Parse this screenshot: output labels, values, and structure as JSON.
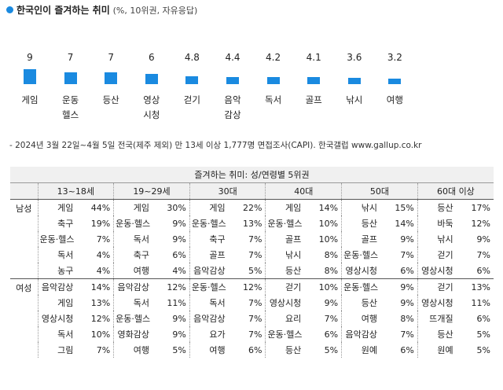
{
  "chart_data": {
    "type": "bar",
    "title": "한국인이 즐겨하는 취미",
    "subtitle": "(%, 10위권, 자유응답)",
    "categories": [
      "게임",
      "운동\n헬스",
      "등산",
      "영상\n시청",
      "걷기",
      "음악\n감상",
      "독서",
      "골프",
      "낚시",
      "여행"
    ],
    "values": [
      9,
      7,
      7,
      6,
      4.8,
      4.4,
      4.2,
      4.1,
      3.6,
      3.2
    ],
    "color": "#1a8ae0"
  },
  "note": "- 2024년 3월 22일~4월 5일 전국(제주 제외) 만 13세 이상 1,777명 면접조사(CAPI). 한국갤럽 www.gallup.co.kr",
  "table": {
    "title": "즐겨하는 취미: 성/연령별 5위권",
    "columns": [
      "13~18세",
      "19~29세",
      "30대",
      "40대",
      "50대",
      "60대 이상"
    ],
    "groups": [
      {
        "label": "남성",
        "rows": [
          [
            [
              "게임",
              "44%"
            ],
            [
              "게임",
              "30%"
            ],
            [
              "게임",
              "22%"
            ],
            [
              "게임",
              "14%"
            ],
            [
              "낚시",
              "15%"
            ],
            [
              "등산",
              "17%"
            ]
          ],
          [
            [
              "축구",
              "19%"
            ],
            [
              "운동·헬스",
              "9%"
            ],
            [
              "운동·헬스",
              "13%"
            ],
            [
              "운동·헬스",
              "10%"
            ],
            [
              "등산",
              "14%"
            ],
            [
              "바둑",
              "12%"
            ]
          ],
          [
            [
              "운동·헬스",
              "7%"
            ],
            [
              "독서",
              "9%"
            ],
            [
              "축구",
              "7%"
            ],
            [
              "골프",
              "10%"
            ],
            [
              "골프",
              "9%"
            ],
            [
              "낚시",
              "9%"
            ]
          ],
          [
            [
              "독서",
              "4%"
            ],
            [
              "축구",
              "6%"
            ],
            [
              "골프",
              "7%"
            ],
            [
              "낚시",
              "8%"
            ],
            [
              "운동·헬스",
              "7%"
            ],
            [
              "걷기",
              "7%"
            ]
          ],
          [
            [
              "농구",
              "4%"
            ],
            [
              "여행",
              "4%"
            ],
            [
              "음악감상",
              "5%"
            ],
            [
              "등산",
              "8%"
            ],
            [
              "영상시청",
              "6%"
            ],
            [
              "영상시청",
              "6%"
            ]
          ]
        ]
      },
      {
        "label": "여성",
        "rows": [
          [
            [
              "음악감상",
              "14%"
            ],
            [
              "음악감상",
              "12%"
            ],
            [
              "운동·헬스",
              "12%"
            ],
            [
              "걷기",
              "10%"
            ],
            [
              "운동·헬스",
              "9%"
            ],
            [
              "걷기",
              "13%"
            ]
          ],
          [
            [
              "게임",
              "13%"
            ],
            [
              "독서",
              "11%"
            ],
            [
              "독서",
              "7%"
            ],
            [
              "영상시청",
              "9%"
            ],
            [
              "등산",
              "9%"
            ],
            [
              "영상시청",
              "11%"
            ]
          ],
          [
            [
              "영상시청",
              "12%"
            ],
            [
              "운동·헬스",
              "9%"
            ],
            [
              "음악감상",
              "7%"
            ],
            [
              "요리",
              "7%"
            ],
            [
              "여행",
              "8%"
            ],
            [
              "뜨개질",
              "6%"
            ]
          ],
          [
            [
              "독서",
              "10%"
            ],
            [
              "영화감상",
              "9%"
            ],
            [
              "요가",
              "7%"
            ],
            [
              "운동·헬스",
              "6%"
            ],
            [
              "음악감상",
              "7%"
            ],
            [
              "등산",
              "5%"
            ]
          ],
          [
            [
              "그림",
              "7%"
            ],
            [
              "여행",
              "5%"
            ],
            [
              "여행",
              "6%"
            ],
            [
              "등산",
              "5%"
            ],
            [
              "원예",
              "6%"
            ],
            [
              "원예",
              "5%"
            ]
          ]
        ]
      }
    ]
  }
}
